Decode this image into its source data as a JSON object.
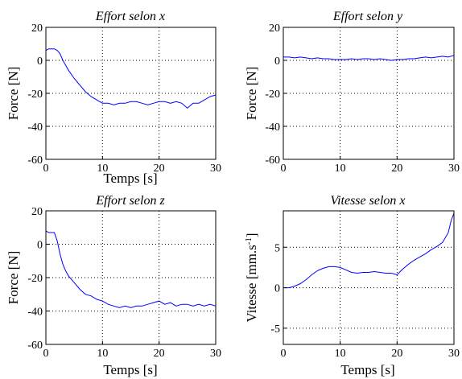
{
  "chart_data": [
    {
      "type": "line",
      "title": "Effort selon x",
      "xlabel": "Temps [s]",
      "ylabel": "Force [N]",
      "xlim": [
        0,
        30
      ],
      "ylim": [
        -60,
        20
      ],
      "xticks": [
        0,
        10,
        20,
        30
      ],
      "yticks": [
        -60,
        -40,
        -20,
        0,
        20
      ],
      "grid": true,
      "series": [
        {
          "color": "#0000ff",
          "x": [
            0,
            0.5,
            1,
            1.5,
            2,
            2.5,
            3,
            3.5,
            4,
            5,
            6,
            7,
            8,
            9,
            9.5,
            10,
            11,
            12,
            13,
            14,
            15,
            16,
            17,
            18,
            19,
            20,
            21,
            22,
            23,
            24,
            25,
            26,
            27,
            28,
            29,
            30
          ],
          "y": [
            6,
            7,
            7,
            7,
            6,
            4,
            0,
            -3,
            -6,
            -11,
            -15,
            -19,
            -22,
            -24,
            -25,
            -26,
            -26,
            -27,
            -26,
            -26,
            -25,
            -25,
            -26,
            -27,
            -26,
            -25,
            -25,
            -26,
            -25,
            -26,
            -29,
            -26,
            -26,
            -24,
            -22,
            -21
          ]
        }
      ]
    },
    {
      "type": "line",
      "title": "Effort selon y",
      "xlabel": "",
      "ylabel": "Force [N]",
      "xlim": [
        0,
        30
      ],
      "ylim": [
        -60,
        20
      ],
      "xticks": [
        0,
        10,
        20,
        30
      ],
      "yticks": [
        -60,
        -40,
        -20,
        0,
        20
      ],
      "grid": true,
      "series": [
        {
          "color": "#0000ff",
          "x": [
            0,
            1,
            2,
            3,
            4,
            5,
            6,
            7,
            8,
            9,
            10,
            11,
            12,
            13,
            14,
            15,
            16,
            17,
            18,
            19,
            20,
            21,
            22,
            23,
            24,
            25,
            26,
            27,
            28,
            29,
            30
          ],
          "y": [
            2,
            2,
            1.5,
            2,
            1.5,
            1,
            1.5,
            1,
            1,
            0.5,
            0.5,
            0.5,
            1,
            0.5,
            1,
            1,
            0.5,
            1,
            0.5,
            0,
            0.5,
            0.5,
            1,
            1,
            1.5,
            2,
            1.5,
            2,
            2.5,
            2,
            3
          ]
        }
      ]
    },
    {
      "type": "line",
      "title": "Effort selon z",
      "xlabel": "Temps [s]",
      "ylabel": "Force [N]",
      "xlim": [
        0,
        30
      ],
      "ylim": [
        -60,
        20
      ],
      "xticks": [
        0,
        10,
        20,
        30
      ],
      "yticks": [
        -60,
        -40,
        -20,
        0,
        20
      ],
      "grid": true,
      "series": [
        {
          "color": "#0000ff",
          "x": [
            0,
            0.5,
            1,
            1.5,
            2,
            2.5,
            3,
            3.5,
            4,
            5,
            6,
            7,
            8,
            9,
            10,
            11,
            12,
            13,
            14,
            15,
            16,
            17,
            18,
            19,
            20,
            21,
            22,
            23,
            24,
            25,
            26,
            27,
            28,
            29,
            30
          ],
          "y": [
            8,
            7,
            7,
            7,
            2,
            -6,
            -12,
            -16,
            -19,
            -23,
            -27,
            -30,
            -31,
            -33,
            -34,
            -36,
            -37,
            -38,
            -37,
            -38,
            -37,
            -37,
            -36,
            -35,
            -34,
            -36,
            -35,
            -37,
            -36,
            -36,
            -37,
            -36,
            -37,
            -36,
            -37
          ]
        }
      ]
    },
    {
      "type": "line",
      "title": "Vitesse selon x",
      "xlabel": "Temps [s]",
      "ylabel": "Vitesse [mm.s-1]",
      "xlim": [
        0,
        30
      ],
      "ylim": [
        -7,
        9.5
      ],
      "xticks": [
        0,
        10,
        20,
        30
      ],
      "yticks": [
        -5,
        0,
        5
      ],
      "grid": true,
      "series": [
        {
          "color": "#0000ff",
          "x": [
            0,
            0.5,
            1,
            2,
            3,
            4,
            5,
            6,
            7,
            8,
            9,
            10,
            11,
            12,
            13,
            14,
            15,
            16,
            17,
            18,
            19,
            20,
            21,
            22,
            23,
            24,
            25,
            26,
            27,
            28,
            29,
            29.5,
            30
          ],
          "y": [
            0,
            0,
            0,
            0.2,
            0.5,
            1,
            1.6,
            2.1,
            2.4,
            2.6,
            2.6,
            2.5,
            2.2,
            1.9,
            1.8,
            1.9,
            1.9,
            2.0,
            1.9,
            1.8,
            1.8,
            1.6,
            2.3,
            2.9,
            3.4,
            3.8,
            4.2,
            4.7,
            5.1,
            5.6,
            6.8,
            8.3,
            9.2
          ]
        }
      ]
    }
  ]
}
